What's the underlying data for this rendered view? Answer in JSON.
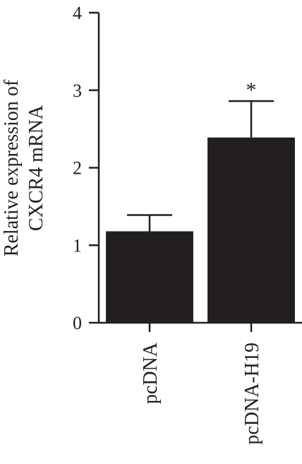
{
  "chart_data": {
    "type": "bar",
    "categories": [
      "pcDNA",
      "pcDNA-H19"
    ],
    "values": [
      1.18,
      2.39
    ],
    "errors": [
      0.21,
      0.47
    ],
    "annotations": [
      "",
      "*"
    ],
    "ylabel_lines": [
      "Relative expression of",
      "CXCR4 mRNA"
    ],
    "ylim": [
      0,
      4
    ],
    "yticks": [
      0,
      1,
      2,
      3,
      4
    ],
    "grid": false,
    "bar_color": "#231f20"
  }
}
